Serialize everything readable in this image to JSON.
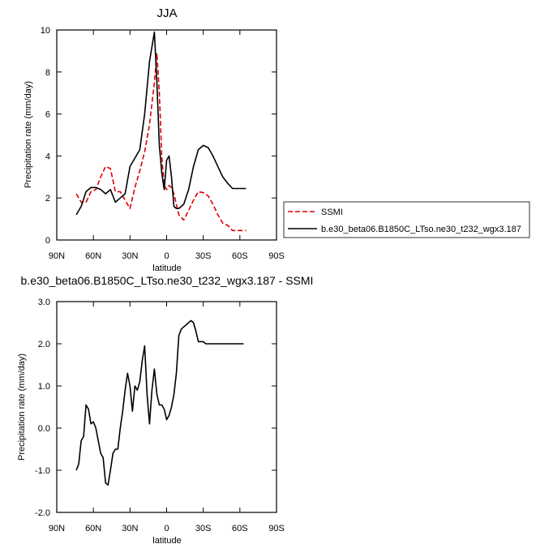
{
  "chart_data": [
    {
      "type": "line",
      "title": "JJA",
      "xlabel": "latitude",
      "ylabel": "Precipitation rate (mm/day)",
      "xlim": [
        90,
        -90
      ],
      "ylim": [
        0,
        10
      ],
      "x_ticks": [
        90,
        60,
        30,
        0,
        -30,
        -60,
        -90
      ],
      "x_tick_labels": [
        "90N",
        "60N",
        "30N",
        "0",
        "30S",
        "60S",
        "90S"
      ],
      "y_ticks": [
        0,
        2,
        4,
        6,
        8,
        10
      ],
      "y_tick_labels": [
        "0",
        "2",
        "4",
        "6",
        "8",
        "10"
      ],
      "legend_position": "outside-right",
      "series": [
        {
          "name": "SSMI",
          "color": "#dd0000",
          "dash": "dashed",
          "x": [
            74,
            70,
            66,
            62,
            58,
            54,
            50,
            46,
            42,
            38,
            34,
            30,
            26,
            22,
            18,
            14,
            10,
            8,
            6,
            4,
            2,
            0,
            -2,
            -4,
            -6,
            -8,
            -10,
            -14,
            -18,
            -22,
            -26,
            -30,
            -34,
            -38,
            -42,
            -46,
            -50,
            -54,
            -58,
            -62,
            -65
          ],
          "y": [
            2.2,
            1.8,
            1.8,
            2.3,
            2.4,
            3.0,
            3.5,
            3.4,
            2.3,
            2.3,
            1.9,
            1.5,
            2.5,
            3.3,
            4.2,
            5.5,
            7.5,
            8.9,
            7.0,
            4.0,
            2.6,
            2.4,
            2.6,
            2.5,
            2.2,
            1.7,
            1.2,
            0.95,
            1.4,
            1.9,
            2.3,
            2.25,
            2.1,
            1.7,
            1.2,
            0.8,
            0.7,
            0.45,
            0.45,
            0.45,
            0.45
          ]
        },
        {
          "name": "b.e30_beta06.B1850C_LTso.ne30_t232_wgx3.187",
          "color": "#000000",
          "dash": "solid",
          "x": [
            74,
            70,
            66,
            62,
            58,
            54,
            50,
            46,
            42,
            38,
            34,
            30,
            26,
            22,
            18,
            14,
            10,
            8,
            6,
            4,
            2,
            0,
            -2,
            -4,
            -6,
            -8,
            -10,
            -14,
            -18,
            -22,
            -26,
            -30,
            -34,
            -38,
            -42,
            -46,
            -50,
            -54,
            -58,
            -62,
            -65
          ],
          "y": [
            1.2,
            1.6,
            2.3,
            2.5,
            2.5,
            2.4,
            2.2,
            2.4,
            1.8,
            2.0,
            2.2,
            3.5,
            3.9,
            4.3,
            6.0,
            8.5,
            9.9,
            7.5,
            4.5,
            3.2,
            2.4,
            3.8,
            4.0,
            3.0,
            1.6,
            1.5,
            1.5,
            1.7,
            2.4,
            3.5,
            4.3,
            4.5,
            4.4,
            4.0,
            3.5,
            3.0,
            2.7,
            2.45,
            2.45,
            2.45,
            2.45
          ]
        }
      ]
    },
    {
      "type": "line",
      "title": "b.e30_beta06.B1850C_LTso.ne30_t232_wgx3.187 - SSMI",
      "xlabel": "latitude",
      "ylabel": "Precipitation rate (mm/day)",
      "xlim": [
        90,
        -90
      ],
      "ylim": [
        -2,
        3
      ],
      "x_ticks": [
        90,
        60,
        30,
        0,
        -30,
        -60,
        -90
      ],
      "x_tick_labels": [
        "90N",
        "60N",
        "30N",
        "0",
        "30S",
        "60S",
        "90S"
      ],
      "y_ticks": [
        -2,
        -1,
        0,
        1,
        2,
        3
      ],
      "y_tick_labels": [
        "-2.0",
        "-1.0",
        "0.0",
        "1.0",
        "2.0",
        "3.0"
      ],
      "series": [
        {
          "color": "#000000",
          "dash": "solid",
          "x": [
            74,
            72,
            70,
            68,
            66,
            64,
            62,
            60,
            58,
            56,
            54,
            52,
            50,
            48,
            46,
            44,
            42,
            40,
            38,
            36,
            34,
            32,
            30,
            28,
            26,
            24,
            22,
            20,
            18,
            16,
            14,
            12,
            10,
            8,
            6,
            4,
            2,
            0,
            -2,
            -4,
            -6,
            -8,
            -10,
            -12,
            -14,
            -16,
            -18,
            -20,
            -22,
            -24,
            -26,
            -28,
            -30,
            -32,
            -34,
            -36,
            -38,
            -40,
            -42,
            -44,
            -46,
            -48,
            -50,
            -52,
            -54,
            -56,
            -58,
            -60,
            -62,
            -63
          ],
          "y": [
            -1.0,
            -0.85,
            -0.3,
            -0.2,
            0.55,
            0.45,
            0.1,
            0.15,
            0.0,
            -0.3,
            -0.6,
            -0.7,
            -1.3,
            -1.35,
            -1.0,
            -0.6,
            -0.5,
            -0.5,
            0.0,
            0.4,
            0.9,
            1.3,
            1.0,
            0.4,
            1.0,
            0.9,
            1.1,
            1.6,
            1.95,
            0.8,
            0.1,
            0.9,
            1.4,
            0.8,
            0.55,
            0.55,
            0.45,
            0.2,
            0.3,
            0.5,
            0.8,
            1.3,
            2.2,
            2.35,
            2.4,
            2.45,
            2.5,
            2.55,
            2.5,
            2.3,
            2.05,
            2.05,
            2.05,
            2.0,
            2.0,
            2.0,
            2.0,
            2.0,
            2.0,
            2.0,
            2.0,
            2.0,
            2.0,
            2.0,
            2.0,
            2.0,
            2.0,
            2.0,
            2.0,
            2.0
          ]
        }
      ]
    }
  ]
}
